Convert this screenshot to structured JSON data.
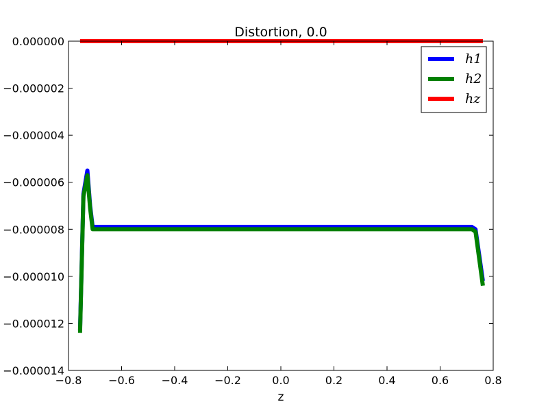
{
  "chart_data": {
    "type": "line",
    "title": "Distortion, 0.0",
    "xlabel": "z",
    "ylabel": "",
    "xlim": [
      -0.8,
      0.8
    ],
    "ylim": [
      -1.4e-05,
      0.0
    ],
    "x_ticks": [
      -0.8,
      -0.6,
      -0.4,
      -0.2,
      0.0,
      0.2,
      0.4,
      0.6,
      0.8
    ],
    "x_tick_labels": [
      "−0.8",
      "−0.6",
      "−0.4",
      "−0.2",
      "0.0",
      "0.2",
      "0.4",
      "0.6",
      "0.8"
    ],
    "y_ticks": [
      0.0,
      -2e-06,
      -4e-06,
      -6e-06,
      -8e-06,
      -1e-05,
      -1.2e-05,
      -1.4e-05
    ],
    "y_tick_labels": [
      "0.000000",
      "−0.000002",
      "−0.000004",
      "−0.000006",
      "−0.000008",
      "−0.000010",
      "−0.000012",
      "−0.000014"
    ],
    "grid": false,
    "legend_position": "top-right",
    "series": [
      {
        "name": "h1",
        "color": "#0000ff",
        "x": [
          -0.7565,
          -0.7438,
          -0.7289,
          -0.7186,
          -0.709,
          -0.4,
          0.0,
          0.4,
          0.72,
          0.7334,
          0.7611
        ],
        "y": [
          -1.23e-05,
          -6.5e-06,
          -5.5e-06,
          -7e-06,
          -7.9e-06,
          -7.9e-06,
          -7.9e-06,
          -7.9e-06,
          -7.9e-06,
          -8e-06,
          -1.02e-05
        ]
      },
      {
        "name": "h2",
        "color": "#008000",
        "x": [
          -0.7565,
          -0.7438,
          -0.7289,
          -0.7186,
          -0.709,
          -0.4,
          0.0,
          0.4,
          0.72,
          0.7334,
          0.7611
        ],
        "y": [
          -1.24e-05,
          -6.6e-06,
          -5.7e-06,
          -7.1e-06,
          -8e-06,
          -8e-06,
          -8e-06,
          -8e-06,
          -8e-06,
          -8.1e-06,
          -1.04e-05
        ]
      },
      {
        "name": "hz",
        "color": "#ff0000",
        "x": [
          -0.7565,
          0.7611
        ],
        "y": [
          0.0,
          0.0
        ]
      }
    ]
  }
}
